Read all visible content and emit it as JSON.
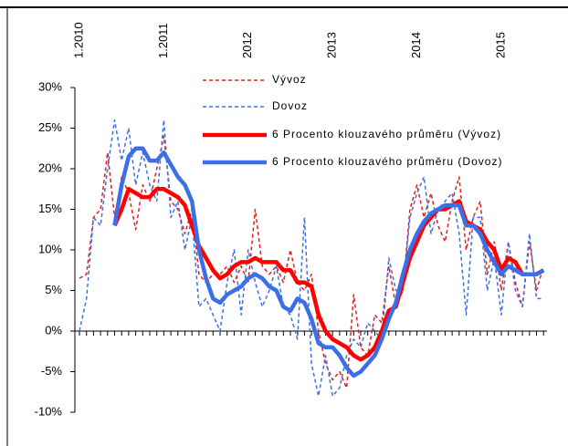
{
  "chart_data": {
    "type": "line",
    "categories": [
      "1.2010",
      null,
      null,
      null,
      null,
      null,
      null,
      null,
      null,
      null,
      null,
      null,
      "1.2011",
      null,
      null,
      null,
      null,
      null,
      null,
      null,
      null,
      null,
      null,
      null,
      "2012",
      null,
      null,
      null,
      null,
      null,
      null,
      null,
      null,
      null,
      null,
      null,
      "2013",
      null,
      null,
      null,
      null,
      null,
      null,
      null,
      null,
      null,
      null,
      null,
      "2014",
      null,
      null,
      null,
      null,
      null,
      null,
      null,
      null,
      null,
      null,
      null,
      "2015",
      null,
      null,
      null,
      null,
      null,
      null
    ],
    "series": [
      {
        "name": "Vývoz",
        "color": "#e02020",
        "style": "dashed",
        "values": [
          6.5,
          7,
          14,
          15,
          22,
          14,
          19,
          17,
          12.5,
          18,
          16,
          20,
          24,
          16,
          15,
          12,
          15,
          7,
          6,
          7,
          7,
          8,
          6,
          8,
          6,
          15,
          8,
          7,
          8,
          6,
          10,
          6,
          5,
          7,
          0,
          -4,
          -6,
          -5,
          -7,
          4.5,
          -2,
          -3,
          2,
          1,
          8,
          3,
          5,
          15,
          18,
          14,
          17,
          13,
          11,
          16,
          19,
          10,
          14,
          16,
          7,
          11,
          5,
          11,
          6,
          3,
          11,
          5,
          8
        ]
      },
      {
        "name": "Dovoz",
        "color": "#4070e0",
        "style": "dashed",
        "values": [
          0,
          4,
          14,
          13,
          20,
          26,
          21,
          25,
          18,
          22,
          18,
          16,
          26,
          14,
          16,
          10,
          14,
          3,
          4,
          2,
          0,
          6,
          10,
          2,
          10,
          6,
          3,
          5,
          8,
          3,
          2,
          -1,
          14,
          -4,
          -8,
          -3,
          -8,
          -7,
          -3,
          -1,
          -2,
          1,
          0,
          -1,
          9,
          5,
          5,
          14,
          17,
          19,
          12,
          15,
          16,
          17,
          12,
          2,
          14,
          14,
          5,
          9,
          2,
          11,
          5,
          3,
          12,
          4,
          4
        ]
      },
      {
        "name": "6 Procento klouzavého průměru (Vývoz)",
        "color": "#ff0000",
        "style": "solid",
        "values": [
          null,
          null,
          null,
          null,
          null,
          13,
          15,
          17.5,
          17,
          16.5,
          16.5,
          17.5,
          17.5,
          17,
          16.5,
          15.5,
          13,
          10.5,
          9,
          7.5,
          6.5,
          7,
          8,
          8.5,
          8.5,
          9,
          8.5,
          8.5,
          8.5,
          7.5,
          7.5,
          6,
          6,
          5.5,
          2,
          0,
          -1,
          -1.5,
          -2,
          -3,
          -3.5,
          -3,
          -2,
          0,
          2.5,
          3,
          6,
          9,
          11,
          13,
          14,
          15,
          15,
          15.5,
          16,
          13.5,
          13,
          12.5,
          11,
          10,
          7.5,
          9,
          8.5,
          7,
          7,
          7,
          7.5
        ]
      },
      {
        "name": "6 Procento klouzavého průměru (Dovoz)",
        "color": "#3b6fe8",
        "style": "solid",
        "values": [
          null,
          null,
          null,
          null,
          null,
          13,
          18,
          21.5,
          22.5,
          22.5,
          21,
          21,
          22,
          20.5,
          19,
          18,
          16,
          10,
          6.5,
          4,
          3.5,
          4.5,
          5,
          5.5,
          6.5,
          7,
          6.5,
          5.5,
          5,
          3,
          2.5,
          4,
          3.5,
          1.5,
          -1.5,
          -2,
          -2,
          -3,
          -4.5,
          -5.5,
          -5,
          -4,
          -3,
          -1,
          1.5,
          3.5,
          7,
          10,
          12,
          13.5,
          14.5,
          15,
          15.5,
          15.5,
          15.5,
          13,
          13,
          12,
          10,
          8.5,
          7,
          8,
          7.5,
          7,
          7,
          7,
          7.5
        ]
      }
    ],
    "ylim": [
      -10,
      30
    ],
    "yticks": [
      {
        "value": -10,
        "label": "-10%"
      },
      {
        "value": -5,
        "label": "-5%"
      },
      {
        "value": 0,
        "label": "0%"
      },
      {
        "value": 5,
        "label": "5%"
      },
      {
        "value": 10,
        "label": "10%"
      },
      {
        "value": 15,
        "label": "15%"
      },
      {
        "value": 20,
        "label": "20%"
      },
      {
        "value": 25,
        "label": "25%"
      },
      {
        "value": 30,
        "label": "30%"
      }
    ],
    "grid": false
  }
}
